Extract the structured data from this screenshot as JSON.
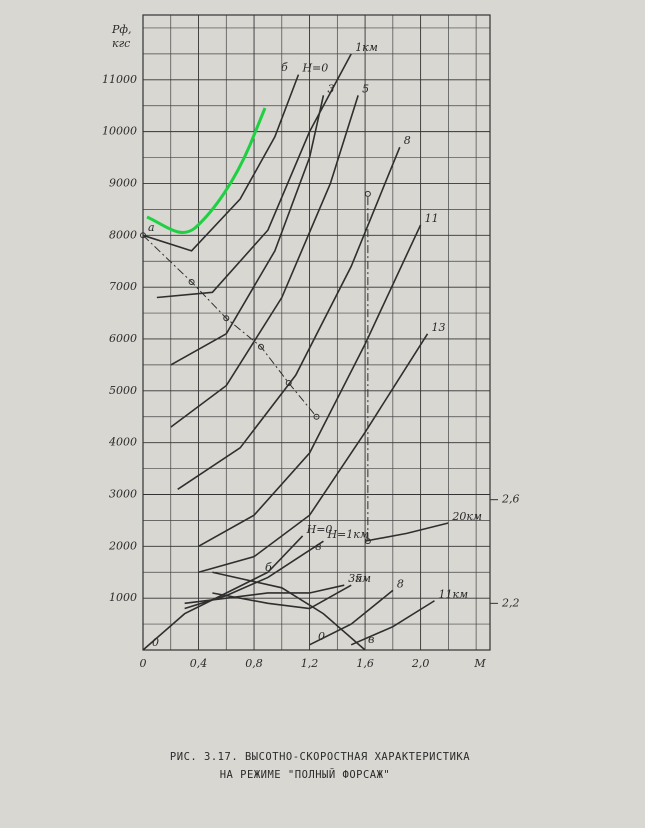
{
  "chart_data": {
    "type": "line",
    "y_label": [
      "Pф,",
      "кгс"
    ],
    "x_label": "M",
    "caption": [
      "РИС. 3.17. ВЫСОТНО-СКОРОСТНАЯ ХАРАКТЕРИСТИКА",
      "НА РЕЖИМЕ \"ПОЛНЫЙ ФОРСАЖ\""
    ],
    "xlim": [
      0,
      2.5
    ],
    "ylim": [
      0,
      12250
    ],
    "xticks": [
      0,
      {
        "value": 0.4,
        "label": "0,4"
      },
      {
        "value": 0.8,
        "label": "0,8"
      },
      {
        "value": 1.2,
        "label": "1,2"
      },
      {
        "value": 1.6,
        "label": "1,6"
      },
      {
        "value": 2.0,
        "label": "2,0"
      }
    ],
    "yticks": [
      1000,
      2000,
      3000,
      4000,
      5000,
      6000,
      7000,
      8000,
      9000,
      10000,
      11000
    ],
    "minor_xgrid": [
      0.2,
      0.6,
      1.0,
      1.4,
      1.8,
      2.2,
      2.4
    ],
    "minor_ygrid": [
      500,
      1500,
      2500,
      3500,
      4500,
      5500,
      6500,
      7500,
      8500,
      9500,
      10500,
      11500,
      12000
    ],
    "y2lim": [
      2.02,
      4.47
    ],
    "y2ticks": [
      {
        "value": 2.2,
        "label": "2,2"
      },
      {
        "value": 2.6,
        "label": "2,6"
      }
    ],
    "grid": true,
    "color": "#2f2f2f",
    "annotations": [
      "а",
      "б",
      "в",
      "б",
      "в",
      "0",
      "0"
    ],
    "series": [
      {
        "name": "H=0",
        "x": [
          0,
          0.35,
          0.7,
          0.95,
          1.12
        ],
        "values": [
          8000,
          7700,
          8700,
          9900,
          11100
        ]
      },
      {
        "name": "1км",
        "x": [
          0.1,
          0.5,
          0.9,
          1.2,
          1.5
        ],
        "values": [
          6800,
          6900,
          8100,
          10000,
          11500
        ]
      },
      {
        "name": "3",
        "x": [
          0.2,
          0.6,
          0.95,
          1.2,
          1.3
        ],
        "values": [
          5500,
          6100,
          7700,
          9500,
          10700
        ]
      },
      {
        "name": "5",
        "x": [
          0.2,
          0.6,
          1.0,
          1.35,
          1.55
        ],
        "values": [
          4300,
          5100,
          6800,
          9000,
          10700
        ]
      },
      {
        "name": "8",
        "x": [
          0.25,
          0.7,
          1.1,
          1.5,
          1.85
        ],
        "values": [
          3100,
          3900,
          5300,
          7400,
          9700
        ]
      },
      {
        "name": "11",
        "x": [
          0.4,
          0.8,
          1.2,
          1.6,
          2.0
        ],
        "values": [
          2000,
          2600,
          3800,
          5900,
          8200
        ]
      },
      {
        "name": "13",
        "x": [
          0.4,
          0.8,
          1.2,
          1.6,
          2.05
        ],
        "values": [
          1500,
          1800,
          2600,
          4200,
          6100
        ]
      },
      {
        "name": "20км",
        "x": [
          1.6,
          1.9,
          2.2
        ],
        "values": [
          2100,
          2250,
          2450
        ]
      },
      {
        "name": "H=0",
        "x": [
          0,
          0.3,
          0.6,
          0.9,
          1.15
        ],
        "values": [
          0,
          700,
          1100,
          1500,
          2200
        ]
      },
      {
        "name": "H=1км",
        "x": [
          0.3,
          0.6,
          0.9,
          1.3
        ],
        "values": [
          800,
          1050,
          1400,
          2100
        ]
      },
      {
        "name": "3км",
        "x": [
          0.3,
          0.6,
          0.9,
          1.2,
          1.45
        ],
        "values": [
          900,
          1000,
          1100,
          1100,
          1250
        ]
      },
      {
        "name": "5",
        "x": [
          0.5,
          0.9,
          1.2,
          1.5
        ],
        "values": [
          1100,
          900,
          800,
          1250
        ]
      },
      {
        "name": "8",
        "x": [
          1.2,
          1.5,
          1.8
        ],
        "values": [
          100,
          500,
          1150
        ]
      },
      {
        "name": "11км",
        "x": [
          1.5,
          1.8,
          2.1
        ],
        "values": [
          100,
          450,
          950
        ]
      },
      {
        "x": [
          0.5,
          1.0,
          1.3,
          1.6
        ],
        "values": [
          1500,
          1200,
          700,
          0
        ]
      },
      {
        "x": [
          0,
          0.35,
          0.6,
          0.85,
          1.05,
          1.25
        ],
        "values": [
          8000,
          7100,
          6400,
          5850,
          5150,
          4500
        ],
        "dash": true
      },
      {
        "x": [
          1.62,
          1.62
        ],
        "values": [
          2100,
          8800
        ],
        "dash": true
      }
    ]
  }
}
